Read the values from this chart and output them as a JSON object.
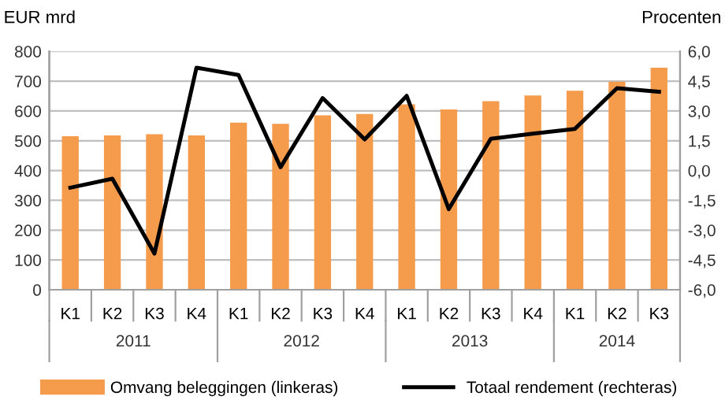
{
  "chart_data": {
    "type": "bar",
    "ylabel": "EUR mrd",
    "y2label": "Procenten",
    "categories": [
      "K1",
      "K2",
      "K3",
      "K4",
      "K1",
      "K2",
      "K3",
      "K4",
      "K1",
      "K2",
      "K3",
      "K4",
      "K1",
      "K2",
      "K3"
    ],
    "annotations": [
      "2011",
      "2012",
      "2013",
      "2014"
    ],
    "series": [
      {
        "name": "Omvang beleggingen (linkeras)",
        "color": "#f59b4c",
        "values": [
          515,
          518,
          522,
          518,
          561,
          557,
          585,
          590,
          622,
          605,
          633,
          652,
          668,
          698,
          745
        ]
      },
      {
        "name": "Totaal rendement (rechteras)",
        "type": "line",
        "axis": "y2",
        "color": "#000000",
        "values": [
          -0.86,
          -0.41,
          -4.18,
          5.18,
          4.81,
          0.17,
          3.65,
          1.57,
          3.76,
          -1.94,
          1.6,
          1.86,
          2.1,
          4.15,
          3.97
        ]
      }
    ],
    "ylim": [
      0,
      800
    ],
    "yticks": [
      0,
      100,
      200,
      300,
      400,
      500,
      600,
      700,
      800
    ],
    "y2lim": [
      -6,
      6
    ],
    "y2ticks": [
      {
        "value": -6,
        "label": "-6,0"
      },
      {
        "value": -4.5,
        "label": "-4,5"
      },
      {
        "value": -3,
        "label": "-3,0"
      },
      {
        "value": -1.5,
        "label": "-1,5"
      },
      {
        "value": 0,
        "label": "0,0"
      },
      {
        "value": 1.5,
        "label": "1,5"
      },
      {
        "value": 3,
        "label": "3,0"
      },
      {
        "value": 4.5,
        "label": "4,5"
      },
      {
        "value": 6,
        "label": "6,0"
      }
    ],
    "grid": "y",
    "legend": "bottom",
    "marker": "none",
    "line_style": "solid"
  }
}
